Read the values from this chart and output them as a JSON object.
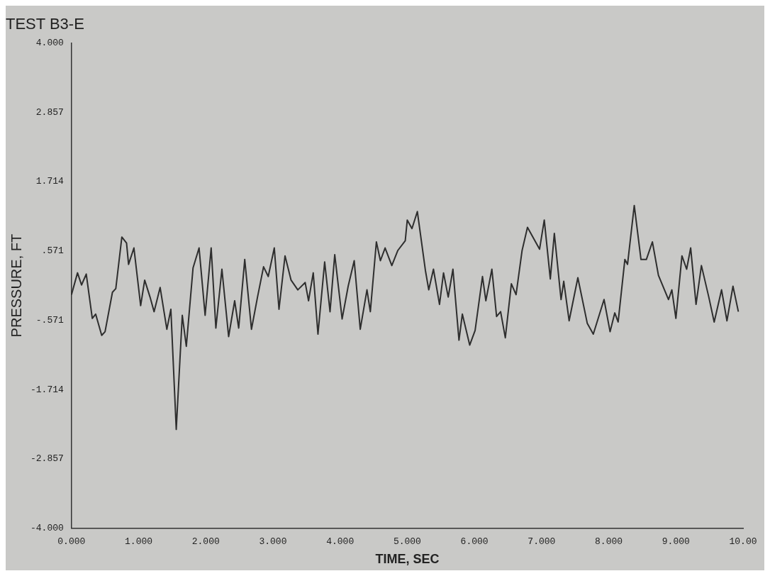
{
  "chart_data": {
    "type": "line",
    "title": "TEST B3-E",
    "xlabel": "TIME, SEC",
    "ylabel": "PRESSURE, FT",
    "xlim": [
      0,
      10
    ],
    "ylim": [
      -4,
      4
    ],
    "xticks": [
      {
        "value": 0,
        "label": "0.000"
      },
      {
        "value": 1,
        "label": "1.000"
      },
      {
        "value": 2,
        "label": "2.000"
      },
      {
        "value": 3,
        "label": "3.000"
      },
      {
        "value": 4,
        "label": "4.000"
      },
      {
        "value": 5,
        "label": "5.000"
      },
      {
        "value": 6,
        "label": "6.000"
      },
      {
        "value": 7,
        "label": "7.000"
      },
      {
        "value": 8,
        "label": "8.000"
      },
      {
        "value": 9,
        "label": "9.000"
      },
      {
        "value": 10,
        "label": "10.00"
      }
    ],
    "yticks": [
      {
        "value": -4,
        "label": "-4.000"
      },
      {
        "value": -2.857,
        "label": "-2.857"
      },
      {
        "value": -1.714,
        "label": "-1.714"
      },
      {
        "value": -0.571,
        "label": "-.571"
      },
      {
        "value": 0.571,
        "label": ".571"
      },
      {
        "value": 1.714,
        "label": "1.714"
      },
      {
        "value": 2.857,
        "label": "2.857"
      },
      {
        "value": 4,
        "label": "4.000"
      }
    ],
    "grid": false,
    "legend": false,
    "marker": "none",
    "line_style": "solid",
    "x": [
      0.0,
      0.09,
      0.15,
      0.22,
      0.31,
      0.36,
      0.45,
      0.5,
      0.61,
      0.66,
      0.75,
      0.82,
      0.85,
      0.93,
      1.03,
      1.09,
      1.17,
      1.23,
      1.32,
      1.42,
      1.48,
      1.56,
      1.65,
      1.71,
      1.81,
      1.9,
      1.99,
      2.08,
      2.15,
      2.24,
      2.34,
      2.43,
      2.49,
      2.58,
      2.68,
      2.77,
      2.86,
      2.93,
      3.02,
      3.09,
      3.18,
      3.27,
      3.37,
      3.48,
      3.53,
      3.6,
      3.67,
      3.77,
      3.85,
      3.92,
      4.03,
      4.12,
      4.21,
      4.3,
      4.4,
      4.45,
      4.54,
      4.6,
      4.67,
      4.77,
      4.86,
      4.97,
      5.0,
      5.07,
      5.15,
      5.27,
      5.32,
      5.39,
      5.48,
      5.54,
      5.61,
      5.68,
      5.77,
      5.82,
      5.93,
      6.01,
      6.12,
      6.17,
      6.26,
      6.33,
      6.39,
      6.46,
      6.55,
      6.62,
      6.71,
      6.79,
      6.97,
      7.04,
      7.13,
      7.19,
      7.29,
      7.33,
      7.41,
      7.54,
      7.68,
      7.77,
      7.93,
      8.02,
      8.09,
      8.14,
      8.24,
      8.28,
      8.38,
      8.48,
      8.56,
      8.65,
      8.74,
      8.89,
      8.94,
      9.0,
      9.09,
      9.16,
      9.22,
      9.3,
      9.38,
      9.49,
      9.57,
      9.68,
      9.76,
      9.85,
      9.93
    ],
    "series": [
      {
        "color": "#2e2e2e",
        "values": [
          -0.15,
          0.21,
          0.01,
          0.19,
          -0.54,
          -0.47,
          -0.82,
          -0.76,
          -0.11,
          -0.05,
          0.8,
          0.7,
          0.35,
          0.62,
          -0.33,
          0.09,
          -0.19,
          -0.43,
          -0.03,
          -0.72,
          -0.39,
          -2.37,
          -0.49,
          -1.0,
          0.29,
          0.62,
          -0.49,
          0.62,
          -0.7,
          0.27,
          -0.84,
          -0.25,
          -0.7,
          0.43,
          -0.72,
          -0.19,
          0.31,
          0.15,
          0.62,
          -0.39,
          0.49,
          0.09,
          -0.07,
          0.05,
          -0.25,
          0.21,
          -0.8,
          0.39,
          -0.43,
          0.51,
          -0.55,
          -0.01,
          0.41,
          -0.72,
          -0.07,
          -0.43,
          0.72,
          0.41,
          0.62,
          0.33,
          0.58,
          0.74,
          1.08,
          0.94,
          1.22,
          0.25,
          -0.07,
          0.27,
          -0.31,
          0.21,
          -0.19,
          0.27,
          -0.9,
          -0.47,
          -0.98,
          -0.74,
          0.15,
          -0.25,
          0.27,
          -0.51,
          -0.43,
          -0.86,
          0.03,
          -0.15,
          0.58,
          0.96,
          0.6,
          1.08,
          0.11,
          0.86,
          -0.23,
          0.07,
          -0.58,
          0.13,
          -0.62,
          -0.8,
          -0.23,
          -0.76,
          -0.45,
          -0.6,
          0.43,
          0.35,
          1.32,
          0.43,
          0.43,
          0.72,
          0.17,
          -0.23,
          -0.07,
          -0.54,
          0.49,
          0.27,
          0.62,
          -0.31,
          0.33,
          -0.19,
          -0.6,
          -0.07,
          -0.58,
          -0.01,
          -0.43
        ]
      }
    ]
  }
}
